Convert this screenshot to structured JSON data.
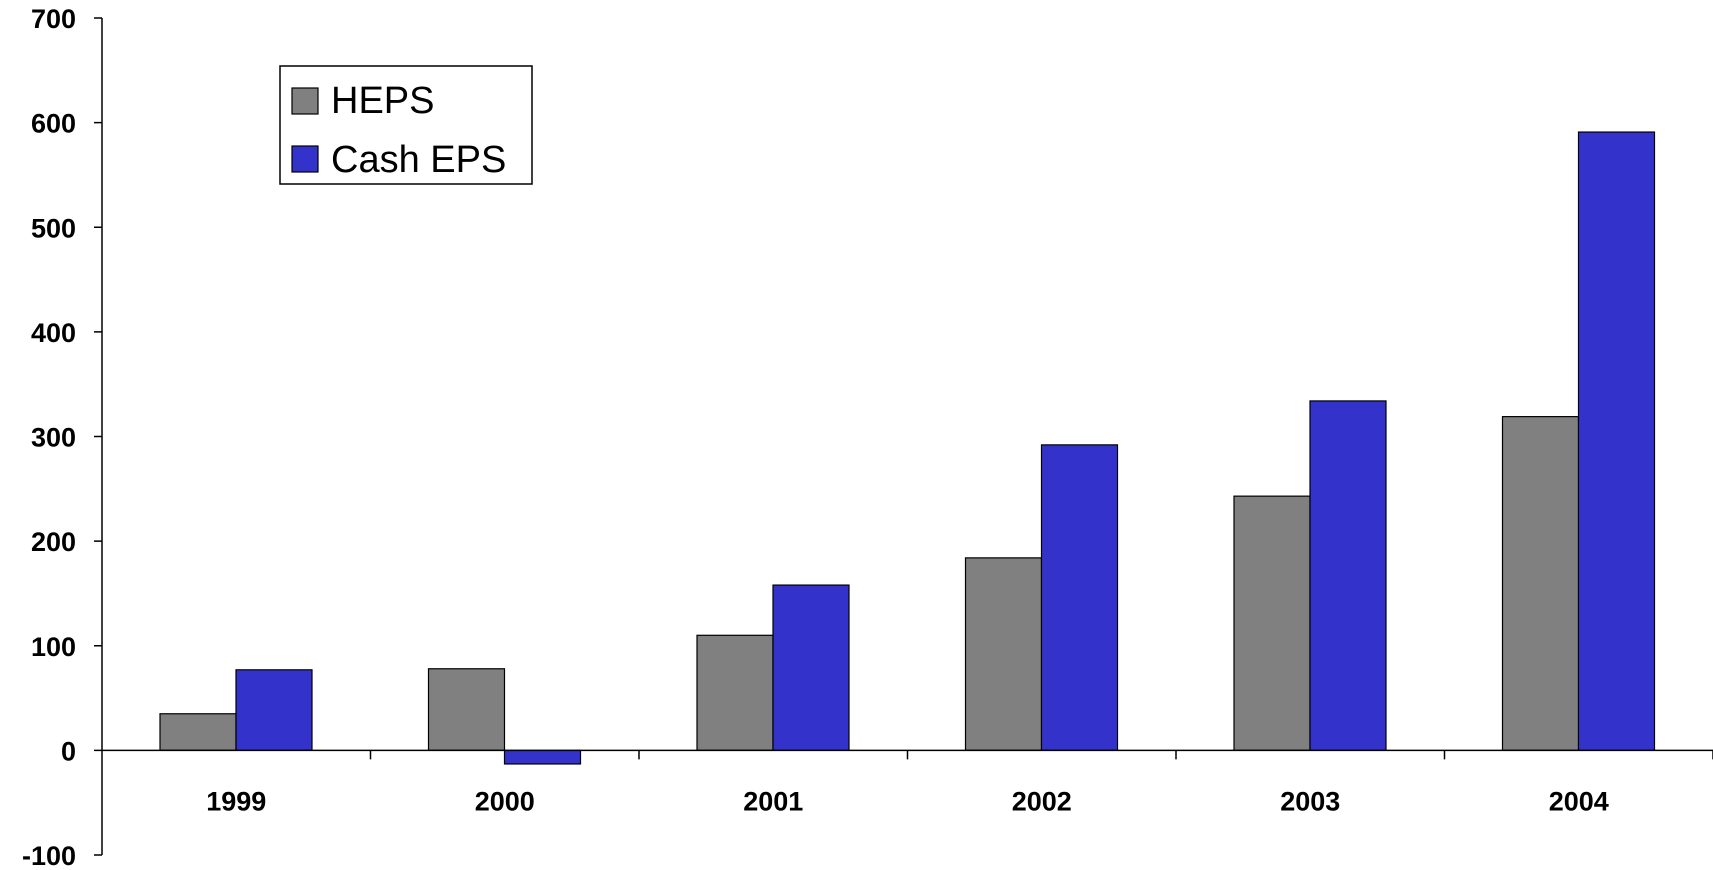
{
  "chart_data": {
    "type": "bar",
    "categories": [
      "1999",
      "2000",
      "2001",
      "2002",
      "2003",
      "2004"
    ],
    "series": [
      {
        "name": "HEPS",
        "color": "#808080",
        "values": [
          35,
          78,
          110,
          184,
          243,
          319
        ]
      },
      {
        "name": "Cash EPS",
        "color": "#3333cc",
        "values": [
          77,
          -13,
          158,
          292,
          334,
          591
        ]
      }
    ],
    "ylim": [
      -100,
      700
    ],
    "yticks": [
      "700",
      "600",
      "500",
      "400",
      "300",
      "200",
      "100",
      "0",
      "-100"
    ],
    "ytick_values": [
      700,
      600,
      500,
      400,
      300,
      200,
      100,
      0,
      -100
    ],
    "legend_position": "top-left",
    "grid": false,
    "title": "",
    "xlabel": "",
    "ylabel": ""
  }
}
